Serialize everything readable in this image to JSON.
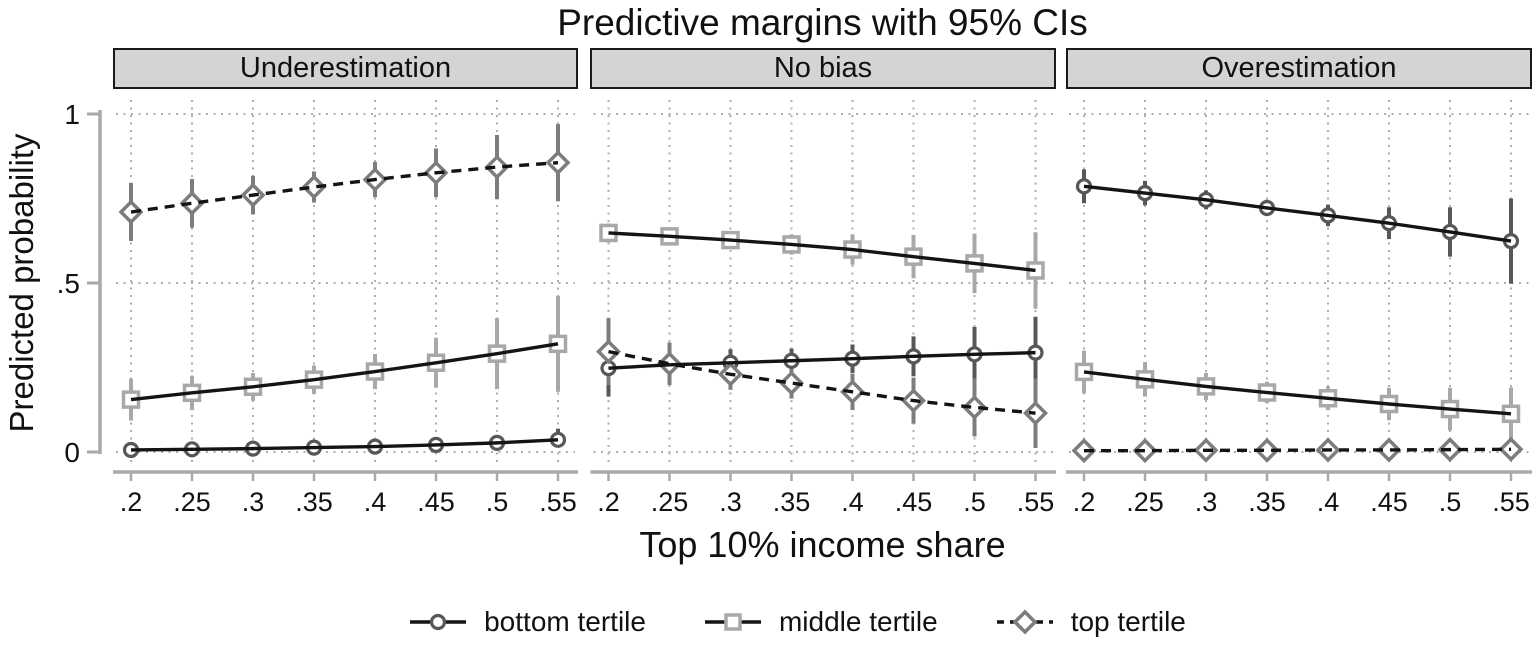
{
  "colors": {
    "grid": "#aeaeae",
    "axis": "#a9a9a9",
    "text": "#111111",
    "header_fill": "#d4d4d4",
    "header_border": "#1a1a1a",
    "series_line": "#141414",
    "bottom_tertile": "#575757",
    "middle_tertile": "#a8a8a8",
    "top_tertile": "#7d7d7d"
  },
  "chart_data": {
    "type": "line",
    "title": "Predictive margins with 95% CIs",
    "xlabel": "Top 10% income share",
    "ylabel": "Predicted probability",
    "x": [
      0.2,
      0.25,
      0.3,
      0.35,
      0.4,
      0.45,
      0.5,
      0.55
    ],
    "x_tick_labels": [
      ".2",
      ".25",
      ".3",
      ".35",
      ".4",
      ".45",
      ".5",
      ".55"
    ],
    "y_ticks": [
      {
        "v": 0,
        "label": "0"
      },
      {
        "v": 0.5,
        "label": ".5"
      },
      {
        "v": 1,
        "label": "1"
      }
    ],
    "ylim": [
      0,
      1
    ],
    "grid": true,
    "legend_position": "bottom",
    "error_bars": "95% CI",
    "series_meta": [
      {
        "id": "bottom",
        "name": "bottom tertile",
        "marker": "circle",
        "line": "solid",
        "color": "#575757"
      },
      {
        "id": "middle",
        "name": "middle tertile",
        "marker": "square",
        "line": "solid",
        "color": "#a8a8a8"
      },
      {
        "id": "top",
        "name": "top tertile",
        "marker": "diamond",
        "line": "dashed",
        "color": "#7d7d7d"
      }
    ],
    "panels": [
      {
        "label": "Underestimation",
        "series": [
          {
            "id": "bottom",
            "values": [
              0.006,
              0.008,
              0.01,
              0.013,
              0.016,
              0.021,
              0.027,
              0.036
            ],
            "ci_low": [
              0.002,
              0.003,
              0.005,
              0.007,
              0.009,
              0.011,
              0.014,
              0.017
            ],
            "ci_high": [
              0.012,
              0.014,
              0.017,
              0.021,
              0.026,
              0.035,
              0.048,
              0.069
            ]
          },
          {
            "id": "middle",
            "values": [
              0.155,
              0.175,
              0.193,
              0.214,
              0.238,
              0.264,
              0.291,
              0.32
            ],
            "ci_low": [
              0.093,
              0.124,
              0.152,
              0.172,
              0.186,
              0.19,
              0.186,
              0.178
            ],
            "ci_high": [
              0.217,
              0.226,
              0.234,
              0.256,
              0.29,
              0.338,
              0.396,
              0.462
            ]
          },
          {
            "id": "top",
            "values": [
              0.71,
              0.736,
              0.76,
              0.784,
              0.806,
              0.826,
              0.843,
              0.856
            ],
            "ci_low": [
              0.624,
              0.664,
              0.703,
              0.738,
              0.754,
              0.754,
              0.748,
              0.742
            ],
            "ci_high": [
              0.796,
              0.808,
              0.817,
              0.83,
              0.858,
              0.898,
              0.938,
              0.97
            ]
          }
        ]
      },
      {
        "label": "No bias",
        "series": [
          {
            "id": "bottom",
            "values": [
              0.248,
              0.258,
              0.264,
              0.27,
              0.276,
              0.283,
              0.289,
              0.294
            ],
            "ci_low": [
              0.164,
              0.2,
              0.224,
              0.234,
              0.234,
              0.224,
              0.208,
              0.188
            ],
            "ci_high": [
              0.332,
              0.316,
              0.304,
              0.306,
              0.318,
              0.342,
              0.37,
              0.4
            ]
          },
          {
            "id": "middle",
            "values": [
              0.648,
              0.638,
              0.627,
              0.614,
              0.599,
              0.578,
              0.558,
              0.537
            ],
            "ci_low": [
              0.62,
              0.614,
              0.603,
              0.584,
              0.554,
              0.514,
              0.47,
              0.424
            ],
            "ci_high": [
              0.676,
              0.662,
              0.651,
              0.644,
              0.644,
              0.642,
              0.646,
              0.65
            ]
          },
          {
            "id": "top",
            "values": [
              0.297,
              0.261,
              0.23,
              0.204,
              0.178,
              0.152,
              0.132,
              0.115
            ],
            "ci_low": [
              0.198,
              0.198,
              0.184,
              0.158,
              0.124,
              0.084,
              0.046,
              0.012
            ],
            "ci_high": [
              0.396,
              0.324,
              0.276,
              0.25,
              0.232,
              0.22,
              0.218,
              0.218
            ]
          }
        ]
      },
      {
        "label": "Overestimation",
        "series": [
          {
            "id": "bottom",
            "values": [
              0.786,
              0.766,
              0.746,
              0.722,
              0.7,
              0.677,
              0.651,
              0.624
            ],
            "ci_low": [
              0.736,
              0.73,
              0.718,
              0.698,
              0.668,
              0.63,
              0.578,
              0.498
            ],
            "ci_high": [
              0.836,
              0.802,
              0.774,
              0.746,
              0.732,
              0.724,
              0.724,
              0.75
            ]
          },
          {
            "id": "middle",
            "values": [
              0.237,
              0.215,
              0.194,
              0.176,
              0.159,
              0.142,
              0.127,
              0.113
            ],
            "ci_low": [
              0.174,
              0.164,
              0.154,
              0.144,
              0.124,
              0.094,
              0.064,
              0.035
            ],
            "ci_high": [
              0.3,
              0.266,
              0.234,
              0.208,
              0.194,
              0.19,
              0.19,
              0.191
            ]
          },
          {
            "id": "top",
            "values": [
              0.004,
              0.004,
              0.005,
              0.005,
              0.006,
              0.006,
              0.007,
              0.008
            ],
            "ci_low": [
              0.001,
              0.001,
              0.001,
              0.002,
              0.002,
              0.002,
              0.002,
              0.003
            ],
            "ci_high": [
              0.008,
              0.009,
              0.01,
              0.011,
              0.012,
              0.013,
              0.014,
              0.016
            ]
          }
        ]
      }
    ]
  }
}
